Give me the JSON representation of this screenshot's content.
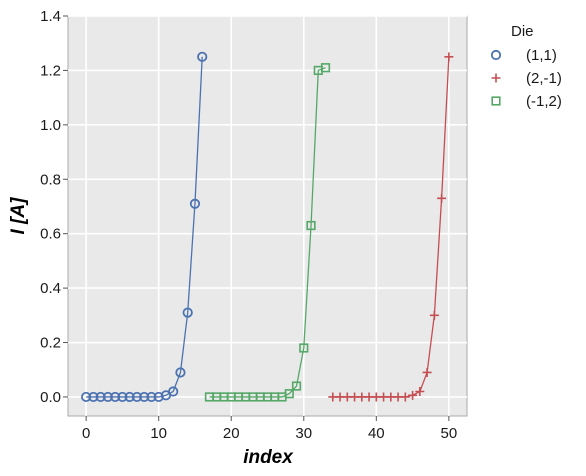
{
  "chart_data": {
    "type": "line",
    "xlabel": "index",
    "ylabel": "I [A]",
    "xlim": [
      -2.5,
      52.5
    ],
    "ylim": [
      -0.07,
      1.4
    ],
    "xticks": [
      0,
      10,
      20,
      30,
      40,
      50
    ],
    "yticks": [
      0.0,
      0.2,
      0.4,
      0.6,
      0.8,
      1.0,
      1.2,
      1.4
    ],
    "ytick_labels": [
      "0.0",
      "0.2",
      "0.4",
      "0.6",
      "0.8",
      "1.0",
      "1.2",
      "1.4"
    ],
    "grid": true,
    "legend": {
      "title": "Die",
      "placement": "outside-top-right"
    },
    "series": [
      {
        "name": "(1,1)",
        "marker": "circle",
        "color": "#4c72b0",
        "x": [
          0,
          1,
          2,
          3,
          4,
          5,
          6,
          7,
          8,
          9,
          10,
          11,
          12,
          13,
          14,
          15,
          16
        ],
        "y": [
          0.0,
          0.0,
          0.0,
          0.0,
          0.0,
          0.0,
          0.0,
          0.0,
          0.0,
          0.0,
          0.0,
          0.006,
          0.02,
          0.09,
          0.31,
          0.71,
          1.25
        ]
      },
      {
        "name": "(2,-1)",
        "marker": "plus",
        "color": "#c44e52",
        "x": [
          34,
          35,
          36,
          37,
          38,
          39,
          40,
          41,
          42,
          43,
          44,
          45,
          46,
          47,
          48,
          49,
          50
        ],
        "y": [
          0.0,
          0.0,
          0.0,
          0.0,
          0.0,
          0.0,
          0.0,
          0.0,
          0.0,
          0.0,
          0.0,
          0.006,
          0.02,
          0.09,
          0.3,
          0.73,
          1.25
        ]
      },
      {
        "name": "(-1,2)",
        "marker": "square",
        "color": "#55a868",
        "x": [
          17,
          18,
          19,
          20,
          21,
          22,
          23,
          24,
          25,
          26,
          27,
          28,
          29,
          30,
          31,
          32,
          33
        ],
        "y": [
          0.0,
          0.0,
          0.0,
          0.0,
          0.0,
          0.0,
          0.0,
          0.0,
          0.0,
          0.0,
          0.0,
          0.012,
          0.04,
          0.18,
          0.63,
          1.2,
          1.21
        ]
      }
    ]
  }
}
